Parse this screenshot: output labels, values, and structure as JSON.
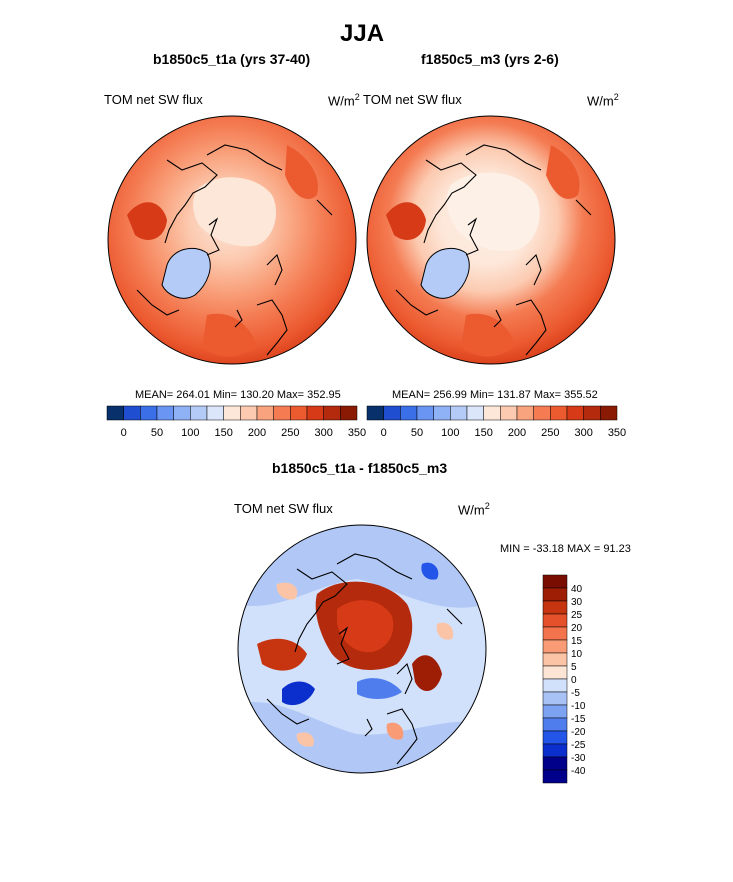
{
  "page_title": "JJA",
  "colors": {
    "ramp_abs": [
      "#08306b",
      "#1f4fd0",
      "#3b6fe8",
      "#6a95f2",
      "#8fb1f5",
      "#b4cbf7",
      "#dbe6fb",
      "#fde7d9",
      "#fccab0",
      "#f9a37e",
      "#f47b52",
      "#ec5a30",
      "#d63a16",
      "#b42a0c",
      "#8b1a04"
    ],
    "ramp_diff": [
      "#00008b",
      "#0a2fcc",
      "#2356e8",
      "#4f7ded",
      "#7ea2f2",
      "#a9c2f6",
      "#d2e1fb",
      "#fde5d6",
      "#fcc4a6",
      "#f99c76",
      "#f3744c",
      "#e4512a",
      "#c73410",
      "#9e1d05",
      "#7a0d02"
    ]
  },
  "panels": [
    {
      "title": "b1850c5_t1a (yrs 37-40)",
      "var_label": "TOM net SW flux",
      "units_base": "W/m",
      "units_exp": "2",
      "stats": "MEAN= 264.01  Min= 130.20  Max= 352.95",
      "colorbar_ticks": [
        "0",
        "50",
        "100",
        "150",
        "200",
        "250",
        "300",
        "350"
      ]
    },
    {
      "title": "f1850c5_m3 (yrs 2-6)",
      "var_label": "TOM net SW flux",
      "units_base": "W/m",
      "units_exp": "2",
      "stats": "MEAN= 256.99  Min= 131.87  Max= 355.52",
      "colorbar_ticks": [
        "0",
        "50",
        "100",
        "150",
        "200",
        "250",
        "300",
        "350"
      ]
    }
  ],
  "diff": {
    "title": "b1850c5_t1a - f1850c5_m3",
    "var_label": "TOM net SW flux",
    "units_base": "W/m",
    "units_exp": "2",
    "stats": "MIN = -33.18 MAX =  91.23",
    "colorbar_ticks": [
      "40",
      "30",
      "25",
      "20",
      "15",
      "10",
      "5",
      "0",
      "-5",
      "-10",
      "-15",
      "-20",
      "-25",
      "-30",
      "-40"
    ]
  }
}
